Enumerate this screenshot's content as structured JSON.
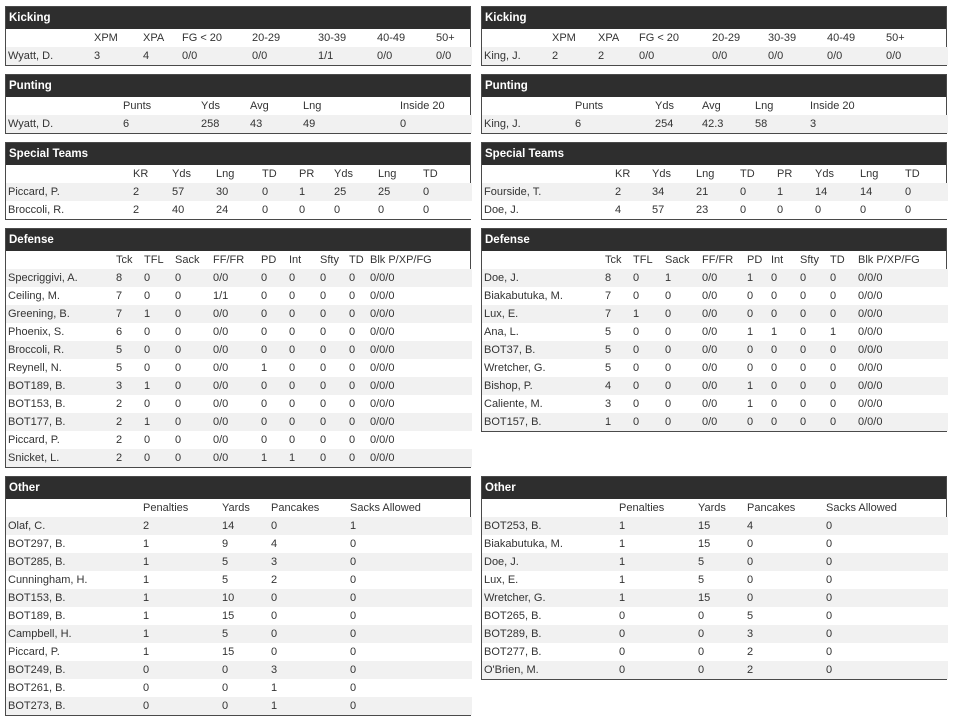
{
  "left": {
    "kicking": {
      "title": "Kicking",
      "headers": [
        "",
        "XPM",
        "XPA",
        "FG < 20",
        "20-29",
        "30-39",
        "40-49",
        "50+"
      ],
      "rows": [
        [
          "Wyatt, D.",
          "3",
          "4",
          "0/0",
          "0/0",
          "1/1",
          "0/0",
          "0/0"
        ]
      ]
    },
    "punting": {
      "title": "Punting",
      "headers": [
        "",
        "Punts",
        "Yds",
        "Avg",
        "Lng",
        "Inside 20"
      ],
      "rows": [
        [
          "Wyatt, D.",
          "6",
          "258",
          "43",
          "49",
          "0"
        ]
      ]
    },
    "special": {
      "title": "Special Teams",
      "headers": [
        "",
        "KR",
        "Yds",
        "Lng",
        "TD",
        "PR",
        "Yds",
        "Lng",
        "TD"
      ],
      "rows": [
        [
          "Piccard, P.",
          "2",
          "57",
          "30",
          "0",
          "1",
          "25",
          "25",
          "0"
        ],
        [
          "Broccoli, R.",
          "2",
          "40",
          "24",
          "0",
          "0",
          "0",
          "0",
          "0"
        ]
      ]
    },
    "defense": {
      "title": "Defense",
      "headers": [
        "",
        "Tck",
        "TFL",
        "Sack",
        "FF/FR",
        "PD",
        "Int",
        "Sfty",
        "TD",
        "Blk P/XP/FG"
      ],
      "rows": [
        [
          "Specriggivi, A.",
          "8",
          "0",
          "0",
          "0/0",
          "0",
          "0",
          "0",
          "0",
          "0/0/0"
        ],
        [
          "Ceiling, M.",
          "7",
          "0",
          "0",
          "1/1",
          "0",
          "0",
          "0",
          "0",
          "0/0/0"
        ],
        [
          "Greening, B.",
          "7",
          "1",
          "0",
          "0/0",
          "0",
          "0",
          "0",
          "0",
          "0/0/0"
        ],
        [
          "Phoenix, S.",
          "6",
          "0",
          "0",
          "0/0",
          "0",
          "0",
          "0",
          "0",
          "0/0/0"
        ],
        [
          "Broccoli, R.",
          "5",
          "0",
          "0",
          "0/0",
          "0",
          "0",
          "0",
          "0",
          "0/0/0"
        ],
        [
          "Reynell, N.",
          "5",
          "0",
          "0",
          "0/0",
          "1",
          "0",
          "0",
          "0",
          "0/0/0"
        ],
        [
          "BOT189, B.",
          "3",
          "1",
          "0",
          "0/0",
          "0",
          "0",
          "0",
          "0",
          "0/0/0"
        ],
        [
          "BOT153, B.",
          "2",
          "0",
          "0",
          "0/0",
          "0",
          "0",
          "0",
          "0",
          "0/0/0"
        ],
        [
          "BOT177, B.",
          "2",
          "1",
          "0",
          "0/0",
          "0",
          "0",
          "0",
          "0",
          "0/0/0"
        ],
        [
          "Piccard, P.",
          "2",
          "0",
          "0",
          "0/0",
          "0",
          "0",
          "0",
          "0",
          "0/0/0"
        ],
        [
          "Snicket, L.",
          "2",
          "0",
          "0",
          "0/0",
          "1",
          "1",
          "0",
          "0",
          "0/0/0"
        ]
      ]
    },
    "other": {
      "title": "Other",
      "headers": [
        "",
        "Penalties",
        "Yards",
        "Pancakes",
        "Sacks Allowed"
      ],
      "rows": [
        [
          "Olaf, C.",
          "2",
          "14",
          "0",
          "1"
        ],
        [
          "BOT297, B.",
          "1",
          "9",
          "4",
          "0"
        ],
        [
          "BOT285, B.",
          "1",
          "5",
          "3",
          "0"
        ],
        [
          "Cunningham, H.",
          "1",
          "5",
          "2",
          "0"
        ],
        [
          "BOT153, B.",
          "1",
          "10",
          "0",
          "0"
        ],
        [
          "BOT189, B.",
          "1",
          "15",
          "0",
          "0"
        ],
        [
          "Campbell, H.",
          "1",
          "5",
          "0",
          "0"
        ],
        [
          "Piccard, P.",
          "1",
          "15",
          "0",
          "0"
        ],
        [
          "BOT249, B.",
          "0",
          "0",
          "3",
          "0"
        ],
        [
          "BOT261, B.",
          "0",
          "0",
          "1",
          "0"
        ],
        [
          "BOT273, B.",
          "0",
          "0",
          "1",
          "0"
        ]
      ]
    }
  },
  "right": {
    "kicking": {
      "title": "Kicking",
      "headers": [
        "",
        "XPM",
        "XPA",
        "FG < 20",
        "20-29",
        "30-39",
        "40-49",
        "50+"
      ],
      "rows": [
        [
          "King, J.",
          "2",
          "2",
          "0/0",
          "0/0",
          "0/0",
          "0/0",
          "0/0"
        ]
      ]
    },
    "punting": {
      "title": "Punting",
      "headers": [
        "",
        "Punts",
        "Yds",
        "Avg",
        "Lng",
        "Inside 20"
      ],
      "rows": [
        [
          "King, J.",
          "6",
          "254",
          "42.3",
          "58",
          "3"
        ]
      ]
    },
    "special": {
      "title": "Special Teams",
      "headers": [
        "",
        "KR",
        "Yds",
        "Lng",
        "TD",
        "PR",
        "Yds",
        "Lng",
        "TD"
      ],
      "rows": [
        [
          "Fourside, T.",
          "2",
          "34",
          "21",
          "0",
          "1",
          "14",
          "14",
          "0"
        ],
        [
          "Doe, J.",
          "4",
          "57",
          "23",
          "0",
          "0",
          "0",
          "0",
          "0"
        ]
      ]
    },
    "defense": {
      "title": "Defense",
      "headers": [
        "",
        "Tck",
        "TFL",
        "Sack",
        "FF/FR",
        "PD",
        "Int",
        "Sfty",
        "TD",
        "Blk P/XP/FG"
      ],
      "rows": [
        [
          "Doe, J.",
          "8",
          "0",
          "1",
          "0/0",
          "1",
          "0",
          "0",
          "0",
          "0/0/0"
        ],
        [
          "Biakabutuka, M.",
          "7",
          "0",
          "0",
          "0/0",
          "0",
          "0",
          "0",
          "0",
          "0/0/0"
        ],
        [
          "Lux, E.",
          "7",
          "1",
          "0",
          "0/0",
          "0",
          "0",
          "0",
          "0",
          "0/0/0"
        ],
        [
          "Ana, L.",
          "5",
          "0",
          "0",
          "0/0",
          "1",
          "1",
          "0",
          "1",
          "0/0/0"
        ],
        [
          "BOT37, B.",
          "5",
          "0",
          "0",
          "0/0",
          "0",
          "0",
          "0",
          "0",
          "0/0/0"
        ],
        [
          "Wretcher, G.",
          "5",
          "0",
          "0",
          "0/0",
          "0",
          "0",
          "0",
          "0",
          "0/0/0"
        ],
        [
          "Bishop, P.",
          "4",
          "0",
          "0",
          "0/0",
          "1",
          "0",
          "0",
          "0",
          "0/0/0"
        ],
        [
          "Caliente, M.",
          "3",
          "0",
          "0",
          "0/0",
          "1",
          "0",
          "0",
          "0",
          "0/0/0"
        ],
        [
          "BOT157, B.",
          "1",
          "0",
          "0",
          "0/0",
          "0",
          "0",
          "0",
          "0",
          "0/0/0"
        ]
      ]
    },
    "other": {
      "title": "Other",
      "headers": [
        "",
        "Penalties",
        "Yards",
        "Pancakes",
        "Sacks Allowed"
      ],
      "rows": [
        [
          "BOT253, B.",
          "1",
          "15",
          "4",
          "0"
        ],
        [
          "Biakabutuka, M.",
          "1",
          "15",
          "0",
          "0"
        ],
        [
          "Doe, J.",
          "1",
          "5",
          "0",
          "0"
        ],
        [
          "Lux, E.",
          "1",
          "5",
          "0",
          "0"
        ],
        [
          "Wretcher, G.",
          "1",
          "15",
          "0",
          "0"
        ],
        [
          "BOT265, B.",
          "0",
          "0",
          "5",
          "0"
        ],
        [
          "BOT289, B.",
          "0",
          "0",
          "3",
          "0"
        ],
        [
          "BOT277, B.",
          "0",
          "0",
          "2",
          "0"
        ],
        [
          "O'Brien, M.",
          "0",
          "0",
          "2",
          "0"
        ]
      ]
    }
  }
}
